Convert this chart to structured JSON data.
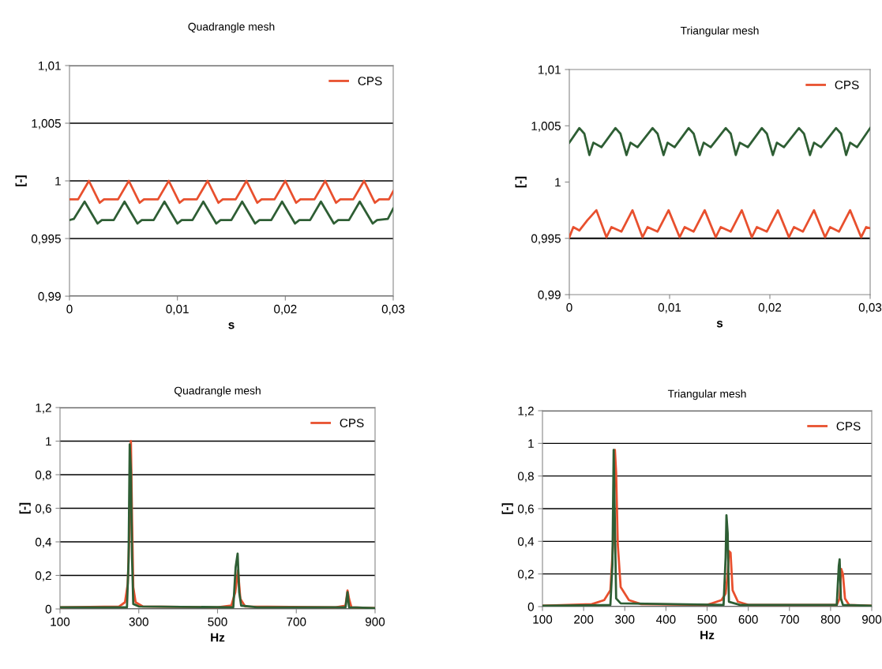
{
  "chart_data": [
    {
      "type": "line",
      "title": "Quadrangle mesh",
      "xlabel": "s",
      "ylabel": "[-]",
      "xlim": [
        0,
        0.03
      ],
      "ylim": [
        0.99,
        1.01
      ],
      "xticks": [
        0,
        {
          "value": 0.01,
          "label": "0,01"
        },
        {
          "value": 0.02,
          "label": "0,02"
        },
        {
          "value": 0.03,
          "label": "0,03"
        }
      ],
      "yticks": [
        {
          "value": 0.99,
          "label": "0,99"
        },
        {
          "value": 0.995,
          "label": "0,995"
        },
        1,
        {
          "value": 1.005,
          "label": "1,005"
        },
        {
          "value": 1.01,
          "label": "1,01"
        }
      ],
      "grid": "y",
      "legend": "top right",
      "marker": "none",
      "line_style": "solid",
      "series": [
        {
          "name": "CPS",
          "color": "#e8502e",
          "x": [
            0,
            0.0008,
            0.0018,
            0.0028,
            0.0032,
            0.0045,
            0.0055,
            0.0065,
            0.0069,
            0.0082,
            0.0092,
            0.0102,
            0.0106,
            0.0118,
            0.0128,
            0.0138,
            0.0142,
            0.0154,
            0.0164,
            0.0174,
            0.0178,
            0.019,
            0.02,
            0.021,
            0.0214,
            0.0227,
            0.0237,
            0.0247,
            0.0251,
            0.0263,
            0.0273,
            0.0283,
            0.0287,
            0.0296,
            0.03
          ],
          "values": [
            0.9984,
            0.9984,
            1.0,
            0.9981,
            0.9984,
            0.9984,
            1.0,
            0.9981,
            0.9984,
            0.9984,
            1.0,
            0.9981,
            0.9984,
            0.9984,
            1.0,
            0.9981,
            0.9984,
            0.9984,
            1.0,
            0.9981,
            0.9984,
            0.9984,
            1.0,
            0.9981,
            0.9984,
            0.9984,
            1.0,
            0.9981,
            0.9984,
            0.9984,
            1.0,
            0.9981,
            0.9984,
            0.9984,
            0.9991
          ]
        },
        {
          "color": "#2e5e34",
          "x": [
            0,
            0.0004,
            0.0014,
            0.0026,
            0.003,
            0.0041,
            0.0051,
            0.0063,
            0.0067,
            0.0078,
            0.0088,
            0.01,
            0.0104,
            0.0114,
            0.0124,
            0.0136,
            0.014,
            0.015,
            0.016,
            0.0172,
            0.0176,
            0.0187,
            0.0197,
            0.0209,
            0.0213,
            0.0223,
            0.0233,
            0.0245,
            0.0249,
            0.0259,
            0.0269,
            0.0281,
            0.0285,
            0.0295,
            0.03
          ],
          "values": [
            0.9966,
            0.9967,
            0.9982,
            0.9963,
            0.9966,
            0.9966,
            0.9982,
            0.9963,
            0.9966,
            0.9966,
            0.9982,
            0.9963,
            0.9966,
            0.9966,
            0.9982,
            0.9963,
            0.9966,
            0.9966,
            0.9982,
            0.9963,
            0.9966,
            0.9966,
            0.9982,
            0.9963,
            0.9966,
            0.9966,
            0.9982,
            0.9963,
            0.9966,
            0.9966,
            0.9982,
            0.9963,
            0.9966,
            0.9967,
            0.9976
          ]
        }
      ]
    },
    {
      "type": "line",
      "title": "Triangular mesh",
      "xlabel": "s",
      "ylabel": "[-]",
      "xlim": [
        0,
        0.03
      ],
      "ylim": [
        0.99,
        1.01
      ],
      "xticks": [
        0,
        {
          "value": 0.01,
          "label": "0,01"
        },
        {
          "value": 0.02,
          "label": "0,02"
        },
        {
          "value": 0.03,
          "label": "0,03"
        }
      ],
      "yticks": [
        {
          "value": 0.99,
          "label": "0,99"
        },
        {
          "value": 0.995,
          "label": "0,995"
        },
        1,
        {
          "value": 1.005,
          "label": "1,005"
        },
        {
          "value": 1.01,
          "label": "1,01"
        }
      ],
      "legend": "top right",
      "marker": "none",
      "line_style": "solid",
      "ref_lines": [
        {
          "axis": "y",
          "value": 0.995,
          "color": "#000000"
        }
      ],
      "series": [
        {
          "name": "CPS",
          "color": "#e8502e",
          "x": [
            0,
            0.0004,
            0.001,
            0.0018,
            0.0027,
            0.0037,
            0.0042,
            0.0052,
            0.0063,
            0.0073,
            0.0078,
            0.0088,
            0.0099,
            0.011,
            0.0115,
            0.0124,
            0.0135,
            0.0146,
            0.0151,
            0.0161,
            0.0172,
            0.0182,
            0.0187,
            0.0197,
            0.0208,
            0.0219,
            0.0224,
            0.0233,
            0.0244,
            0.0255,
            0.026,
            0.0269,
            0.028,
            0.0291,
            0.0296,
            0.03
          ],
          "values": [
            0.9951,
            0.996,
            0.9957,
            0.9966,
            0.9975,
            0.9951,
            0.996,
            0.9956,
            0.9975,
            0.9951,
            0.996,
            0.9956,
            0.9975,
            0.9951,
            0.996,
            0.9956,
            0.9975,
            0.9951,
            0.996,
            0.9956,
            0.9975,
            0.9951,
            0.996,
            0.9956,
            0.9975,
            0.9951,
            0.996,
            0.9956,
            0.9975,
            0.9951,
            0.996,
            0.9956,
            0.9975,
            0.9951,
            0.996,
            0.9959
          ]
        },
        {
          "color": "#2e5e34",
          "x": [
            0,
            0.001,
            0.0015,
            0.002,
            0.0024,
            0.0032,
            0.0046,
            0.0051,
            0.0057,
            0.0061,
            0.0068,
            0.0083,
            0.0088,
            0.0094,
            0.0098,
            0.0105,
            0.0119,
            0.0124,
            0.013,
            0.0134,
            0.0141,
            0.0156,
            0.0161,
            0.0166,
            0.017,
            0.0178,
            0.0192,
            0.0197,
            0.0203,
            0.0207,
            0.0214,
            0.0229,
            0.0234,
            0.024,
            0.0244,
            0.0251,
            0.0266,
            0.0271,
            0.0276,
            0.028,
            0.0287,
            0.03
          ],
          "values": [
            1.0035,
            1.0048,
            1.0043,
            1.0024,
            1.0035,
            1.0031,
            1.0048,
            1.0043,
            1.0024,
            1.0035,
            1.0031,
            1.0048,
            1.0043,
            1.0024,
            1.0035,
            1.0031,
            1.0048,
            1.0043,
            1.0024,
            1.0035,
            1.0031,
            1.0048,
            1.0043,
            1.0024,
            1.0035,
            1.0031,
            1.0048,
            1.0043,
            1.0024,
            1.0035,
            1.0031,
            1.0048,
            1.0043,
            1.0024,
            1.0035,
            1.0031,
            1.0048,
            1.0043,
            1.0024,
            1.0035,
            1.0031,
            1.0048
          ]
        }
      ]
    },
    {
      "type": "line",
      "title": "Quadrangle mesh",
      "xlabel": "Hz",
      "ylabel": "[-]",
      "xlim": [
        100,
        900
      ],
      "ylim": [
        0,
        1.2
      ],
      "xticks": [
        100,
        300,
        500,
        700,
        900
      ],
      "yticks": [
        0,
        {
          "value": 0.2,
          "label": "0,2"
        },
        {
          "value": 0.4,
          "label": "0,4"
        },
        {
          "value": 0.6,
          "label": "0,6"
        },
        {
          "value": 0.8,
          "label": "0,8"
        },
        1,
        {
          "value": 1.2,
          "label": "1,2"
        }
      ],
      "grid": "y",
      "legend": "top right",
      "marker": "none",
      "line_style": "solid",
      "series": [
        {
          "name": "CPS",
          "color": "#e8502e",
          "x": [
            100,
            250,
            265,
            272,
            277,
            280,
            283,
            286,
            292,
            310,
            500,
            535,
            545,
            552,
            558,
            570,
            800,
            825,
            830,
            834,
            840,
            900
          ],
          "values": [
            0.01,
            0.015,
            0.04,
            0.15,
            0.5,
            1.0,
            0.53,
            0.13,
            0.04,
            0.015,
            0.01,
            0.02,
            0.1,
            0.23,
            0.06,
            0.015,
            0.01,
            0.02,
            0.11,
            0.06,
            0.01,
            0.005
          ]
        },
        {
          "color": "#2e5e34",
          "x": [
            100,
            270,
            274,
            277,
            280,
            283,
            286,
            300,
            540,
            546,
            551,
            555,
            560,
            600,
            825,
            830,
            834,
            900
          ],
          "values": [
            0.01,
            0.01,
            0.28,
            0.98,
            0.82,
            0.3,
            0.03,
            0.015,
            0.01,
            0.25,
            0.33,
            0.1,
            0.02,
            0.01,
            0.01,
            0.1,
            0.01,
            0.005
          ]
        }
      ]
    },
    {
      "type": "line",
      "title": "Triangular mesh",
      "xlabel": "Hz",
      "ylabel": "[-]",
      "xlim": [
        100,
        900
      ],
      "ylim": [
        0,
        1.2
      ],
      "xticks": [
        100,
        200,
        300,
        400,
        500,
        600,
        700,
        800,
        900
      ],
      "yticks": [
        0,
        {
          "value": 0.2,
          "label": "0,2"
        },
        {
          "value": 0.4,
          "label": "0,4"
        },
        {
          "value": 0.6,
          "label": "0,6"
        },
        {
          "value": 0.8,
          "label": "0,8"
        },
        1,
        {
          "value": 1.2,
          "label": "1,2"
        }
      ],
      "grid": "y",
      "legend": "top right",
      "marker": "none",
      "line_style": "solid",
      "series": [
        {
          "name": "CPS",
          "color": "#e8502e",
          "x": [
            100,
            220,
            250,
            265,
            272,
            276,
            279,
            283,
            290,
            310,
            340,
            500,
            535,
            545,
            550,
            553,
            557,
            562,
            575,
            600,
            815,
            822,
            826,
            830,
            835,
            845,
            900
          ],
          "values": [
            0.005,
            0.015,
            0.04,
            0.1,
            0.4,
            0.96,
            0.82,
            0.38,
            0.12,
            0.04,
            0.015,
            0.01,
            0.04,
            0.08,
            0.2,
            0.34,
            0.33,
            0.1,
            0.03,
            0.01,
            0.01,
            0.05,
            0.23,
            0.2,
            0.05,
            0.01,
            0.005
          ]
        },
        {
          "color": "#2e5e34",
          "x": [
            100,
            265,
            270,
            273,
            276,
            279,
            290,
            540,
            545,
            547,
            550,
            553,
            580,
            815,
            820,
            822,
            825,
            830,
            900
          ],
          "values": [
            0.005,
            0.01,
            0.26,
            0.96,
            0.5,
            0.05,
            0.02,
            0.01,
            0.3,
            0.56,
            0.45,
            0.03,
            0.01,
            0.01,
            0.25,
            0.29,
            0.05,
            0.01,
            0.005
          ]
        }
      ]
    }
  ]
}
